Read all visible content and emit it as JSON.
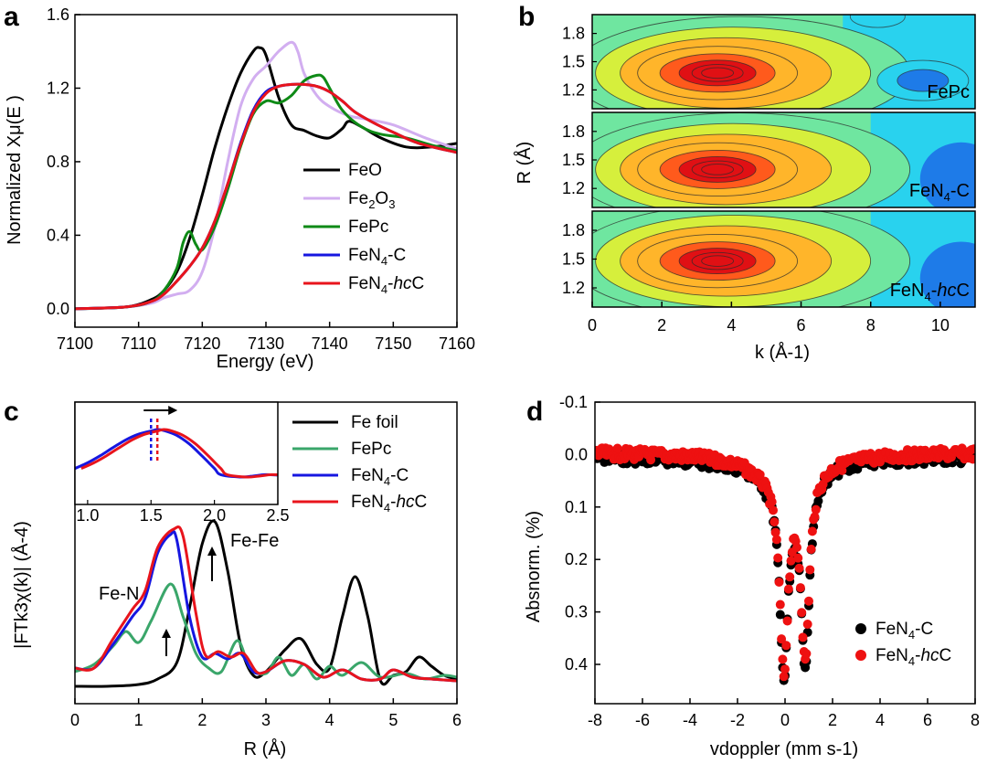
{
  "panels": {
    "a": "a",
    "b": "b",
    "c": "c",
    "d": "d"
  },
  "chart_data": [
    {
      "panel": "a",
      "type": "line",
      "xlabel": "Energy (eV)",
      "ylabel": "Normalized Xμ(E )",
      "xlim": [
        7100,
        7160
      ],
      "ylim": [
        -0.1,
        1.6
      ],
      "xticks": [
        "7100",
        "7110",
        "7120",
        "7130",
        "7140",
        "7150",
        "7160"
      ],
      "yticks": [
        "0.0",
        "0.4",
        "0.8",
        "1.2",
        "1.6"
      ],
      "legend_placement": "bottom-right",
      "series": [
        {
          "name": "FeO",
          "color": "#000000",
          "x": [
            7100,
            7108,
            7112,
            7114,
            7116,
            7118,
            7120,
            7122,
            7124,
            7126,
            7128,
            7129,
            7130,
            7132,
            7134,
            7136,
            7138,
            7140,
            7142,
            7143,
            7145,
            7148,
            7152,
            7156,
            7160
          ],
          "y": [
            0.0,
            0.01,
            0.05,
            0.1,
            0.2,
            0.38,
            0.62,
            0.88,
            1.1,
            1.28,
            1.4,
            1.42,
            1.38,
            1.15,
            1.0,
            0.97,
            0.94,
            0.93,
            0.98,
            1.02,
            0.99,
            0.93,
            0.88,
            0.88,
            0.9
          ]
        },
        {
          "name": "Fe2O3",
          "color": "#d2aef0",
          "x": [
            7100,
            7108,
            7112,
            7114,
            7116,
            7118,
            7120,
            7122,
            7124,
            7126,
            7128,
            7130,
            7132,
            7134,
            7135,
            7136,
            7138,
            7140,
            7143,
            7146,
            7150,
            7155,
            7160
          ],
          "y": [
            0.0,
            0.01,
            0.03,
            0.06,
            0.08,
            0.1,
            0.2,
            0.45,
            0.8,
            1.1,
            1.25,
            1.32,
            1.4,
            1.45,
            1.4,
            1.28,
            1.16,
            1.1,
            1.05,
            1.03,
            1.0,
            0.93,
            0.87
          ]
        },
        {
          "name": "FePc",
          "color": "#0e8a16",
          "x": [
            7100,
            7108,
            7112,
            7114,
            7116,
            7117,
            7118,
            7119,
            7120,
            7122,
            7124,
            7126,
            7128,
            7130,
            7132,
            7134,
            7136,
            7138,
            7139,
            7140,
            7142,
            7145,
            7148,
            7152,
            7156,
            7160
          ],
          "y": [
            0.0,
            0.01,
            0.04,
            0.1,
            0.22,
            0.36,
            0.42,
            0.35,
            0.32,
            0.45,
            0.65,
            0.88,
            1.06,
            1.13,
            1.12,
            1.16,
            1.24,
            1.27,
            1.26,
            1.2,
            1.08,
            0.99,
            0.95,
            0.93,
            0.89,
            0.86
          ]
        },
        {
          "name": "FeN4-C",
          "color": "#1616e0",
          "x": [
            7100,
            7108,
            7112,
            7114,
            7116,
            7118,
            7120,
            7122,
            7124,
            7126,
            7128,
            7130,
            7132,
            7134,
            7136,
            7138,
            7140,
            7142,
            7144,
            7147,
            7150,
            7154,
            7160
          ],
          "y": [
            0.0,
            0.01,
            0.04,
            0.08,
            0.15,
            0.23,
            0.33,
            0.48,
            0.68,
            0.9,
            1.08,
            1.18,
            1.21,
            1.22,
            1.22,
            1.21,
            1.18,
            1.13,
            1.07,
            1.01,
            0.96,
            0.9,
            0.85
          ]
        },
        {
          "name": "FeN4-hcC",
          "color": "#e8141c",
          "x": [
            7100,
            7108,
            7112,
            7114,
            7116,
            7118,
            7120,
            7122,
            7124,
            7126,
            7128,
            7130,
            7132,
            7134,
            7136,
            7138,
            7140,
            7142,
            7144,
            7147,
            7150,
            7154,
            7160
          ],
          "y": [
            0.0,
            0.01,
            0.04,
            0.08,
            0.15,
            0.23,
            0.33,
            0.48,
            0.68,
            0.89,
            1.07,
            1.17,
            1.21,
            1.22,
            1.22,
            1.21,
            1.18,
            1.13,
            1.07,
            1.01,
            0.96,
            0.9,
            0.85
          ]
        }
      ]
    },
    {
      "panel": "b",
      "type": "heatmap",
      "xlabel": "k (Å-1)",
      "ylabel": "R (Å)",
      "xlim": [
        0,
        11
      ],
      "ylim": [
        1.0,
        2.0
      ],
      "xticks": [
        "0",
        "2",
        "4",
        "6",
        "8",
        "10"
      ],
      "yticks": [
        "1.2",
        "1.5",
        "1.8"
      ],
      "colormap": "jet",
      "subplots": [
        {
          "label": "FePc",
          "max_k": 3.6,
          "max_R": 1.38,
          "secondary_max_k": 9.5,
          "secondary_max_R": 1.3
        },
        {
          "label": "FeN4-C",
          "max_k": 3.6,
          "max_R": 1.4
        },
        {
          "label": "FeN4-hcC",
          "max_k": 3.6,
          "max_R": 1.48
        }
      ]
    },
    {
      "panel": "c",
      "type": "line",
      "xlabel": "R (Å)",
      "ylabel": "|FTk3χ(k)| (Å-4)",
      "xlim": [
        0,
        6
      ],
      "xticks": [
        "0",
        "1",
        "2",
        "3",
        "4",
        "5",
        "6"
      ],
      "legend_placement": "top-right",
      "annotations": {
        "fe_n": "Fe-N",
        "fe_fe": "Fe-Fe"
      },
      "inset": {
        "xlim": [
          0.9,
          2.5
        ],
        "xticks": [
          "1.0",
          "1.5",
          "2.0",
          "2.5"
        ],
        "peak_blue": 1.5,
        "peak_red": 1.55
      },
      "series": [
        {
          "name": "Fe foil",
          "color": "#000000",
          "x": [
            0,
            0.5,
            1.0,
            1.3,
            1.6,
            1.8,
            2.0,
            2.2,
            2.4,
            2.6,
            2.8,
            3.0,
            3.3,
            3.55,
            3.8,
            4.0,
            4.2,
            4.4,
            4.6,
            4.8,
            5.0,
            5.2,
            5.4,
            5.6,
            5.8,
            6.0
          ],
          "y": [
            0.02,
            0.02,
            0.03,
            0.06,
            0.15,
            0.45,
            0.8,
            0.92,
            0.65,
            0.25,
            0.08,
            0.1,
            0.22,
            0.28,
            0.14,
            0.12,
            0.4,
            0.62,
            0.4,
            0.05,
            0.08,
            0.1,
            0.18,
            0.13,
            0.08,
            0.06
          ]
        },
        {
          "name": "FePc",
          "color": "#3aa66a",
          "x": [
            0,
            0.3,
            0.6,
            0.8,
            1.0,
            1.2,
            1.5,
            1.7,
            1.9,
            2.1,
            2.3,
            2.55,
            2.75,
            3.0,
            3.2,
            3.4,
            3.6,
            3.8,
            4.0,
            4.2,
            4.5,
            4.8,
            5.2,
            5.5,
            5.8,
            6.0
          ],
          "y": [
            0.1,
            0.14,
            0.24,
            0.32,
            0.26,
            0.38,
            0.58,
            0.4,
            0.2,
            0.12,
            0.1,
            0.27,
            0.12,
            0.09,
            0.18,
            0.08,
            0.14,
            0.06,
            0.13,
            0.08,
            0.15,
            0.07,
            0.09,
            0.06,
            0.08,
            0.07
          ]
        },
        {
          "name": "FeN4-C",
          "color": "#1616e0",
          "x": [
            0,
            0.3,
            0.6,
            0.9,
            1.1,
            1.3,
            1.5,
            1.6,
            1.8,
            2.0,
            2.2,
            2.4,
            2.6,
            2.8,
            3.0,
            3.3,
            3.6,
            3.9,
            4.2,
            4.5,
            4.8,
            5.0,
            5.3,
            5.6,
            6.0
          ],
          "y": [
            0.12,
            0.12,
            0.25,
            0.4,
            0.5,
            0.75,
            0.85,
            0.82,
            0.4,
            0.18,
            0.2,
            0.17,
            0.2,
            0.1,
            0.1,
            0.16,
            0.14,
            0.07,
            0.11,
            0.06,
            0.06,
            0.11,
            0.07,
            0.06,
            0.05
          ]
        },
        {
          "name": "FeN4-hcC",
          "color": "#e8141c",
          "x": [
            0,
            0.3,
            0.6,
            0.9,
            1.1,
            1.3,
            1.55,
            1.7,
            1.9,
            2.05,
            2.25,
            2.45,
            2.65,
            2.85,
            3.0,
            3.3,
            3.6,
            3.9,
            4.2,
            4.5,
            4.8,
            5.0,
            5.3,
            5.6,
            6.0
          ],
          "y": [
            0.12,
            0.12,
            0.28,
            0.44,
            0.54,
            0.78,
            0.88,
            0.84,
            0.42,
            0.19,
            0.21,
            0.18,
            0.2,
            0.1,
            0.1,
            0.16,
            0.14,
            0.07,
            0.11,
            0.06,
            0.06,
            0.11,
            0.07,
            0.06,
            0.05
          ]
        }
      ]
    },
    {
      "panel": "d",
      "type": "scatter",
      "xlabel": "vdoppler (mm s-1)",
      "ylabel": "Absnorm. (%)",
      "xlim": [
        -8,
        8
      ],
      "ylim": [
        -0.1,
        0.42
      ],
      "y_inverted": true,
      "xticks": [
        "-8",
        "-6",
        "-4",
        "-2",
        "0",
        "2",
        "4",
        "6",
        "8"
      ],
      "yticks": [
        "-0.1",
        "0.0",
        "0.1",
        "0.2",
        "0.3",
        "0.4"
      ],
      "legend_placement": "bottom-right",
      "doublet": {
        "center1": -0.05,
        "center2": 0.85,
        "depth1": 0.36,
        "depth2": 0.345,
        "width": 0.42
      },
      "series": [
        {
          "name": "FeN4-C",
          "color": "#000000"
        },
        {
          "name": "FeN4-hcC",
          "color": "#ee1111"
        }
      ]
    }
  ]
}
